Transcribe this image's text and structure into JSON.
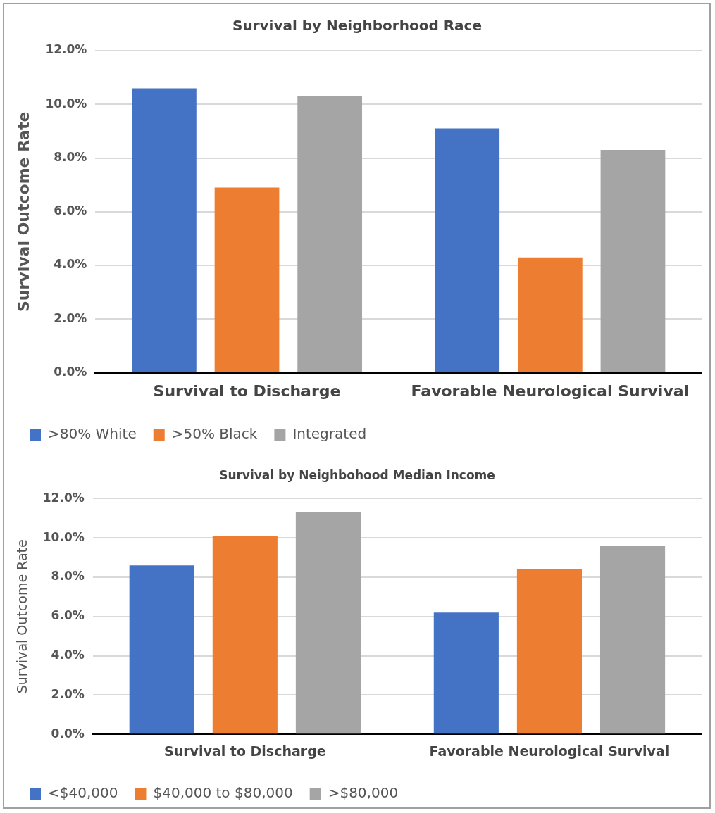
{
  "chart_data": [
    {
      "type": "bar",
      "title": "Survival by Neighborhood Race",
      "ylabel": "Survival Outcome Rate",
      "categories": [
        "Survival to Discharge",
        "Favorable Neurological Survival"
      ],
      "series": [
        {
          "name": ">80% White",
          "color": "#4472c4",
          "values": [
            10.6,
            9.1
          ]
        },
        {
          "name": ">50% Black",
          "color": "#ed7d31",
          "values": [
            6.9,
            4.3
          ]
        },
        {
          "name": "Integrated",
          "color": "#a5a5a5",
          "values": [
            10.3,
            8.3
          ]
        }
      ],
      "ylim": [
        0,
        12
      ],
      "yticks": [
        {
          "value": 0,
          "label": "0.0%"
        },
        {
          "value": 2,
          "label": "2.0%"
        },
        {
          "value": 4,
          "label": "4.0%"
        },
        {
          "value": 6,
          "label": "6.0%"
        },
        {
          "value": 8,
          "label": "8.0%"
        },
        {
          "value": 10,
          "label": "10.0%"
        },
        {
          "value": 12,
          "label": "12.0%"
        }
      ],
      "grid": "y",
      "legend": "bottom"
    },
    {
      "type": "bar",
      "title": "Survival by Neighbohood Median Income",
      "ylabel": "Survival Outcome Rate",
      "categories": [
        "Survival to Discharge",
        "Favorable Neurological Survival"
      ],
      "series": [
        {
          "name": "<$40,000",
          "color": "#4472c4",
          "values": [
            8.6,
            6.2
          ]
        },
        {
          "name": "$40,000 to $80,000",
          "color": "#ed7d31",
          "values": [
            10.1,
            8.4
          ]
        },
        {
          "name": ">$80,000",
          "color": "#a5a5a5",
          "values": [
            11.3,
            9.6
          ]
        }
      ],
      "ylim": [
        0,
        12
      ],
      "yticks": [
        {
          "value": 0,
          "label": "0.0%"
        },
        {
          "value": 2,
          "label": "2.0%"
        },
        {
          "value": 4,
          "label": "4.0%"
        },
        {
          "value": 6,
          "label": "6.0%"
        },
        {
          "value": 8,
          "label": "8.0%"
        },
        {
          "value": 10,
          "label": "10.0%"
        },
        {
          "value": 12,
          "label": "12.0%"
        }
      ],
      "grid": "y",
      "legend": "bottom"
    }
  ]
}
